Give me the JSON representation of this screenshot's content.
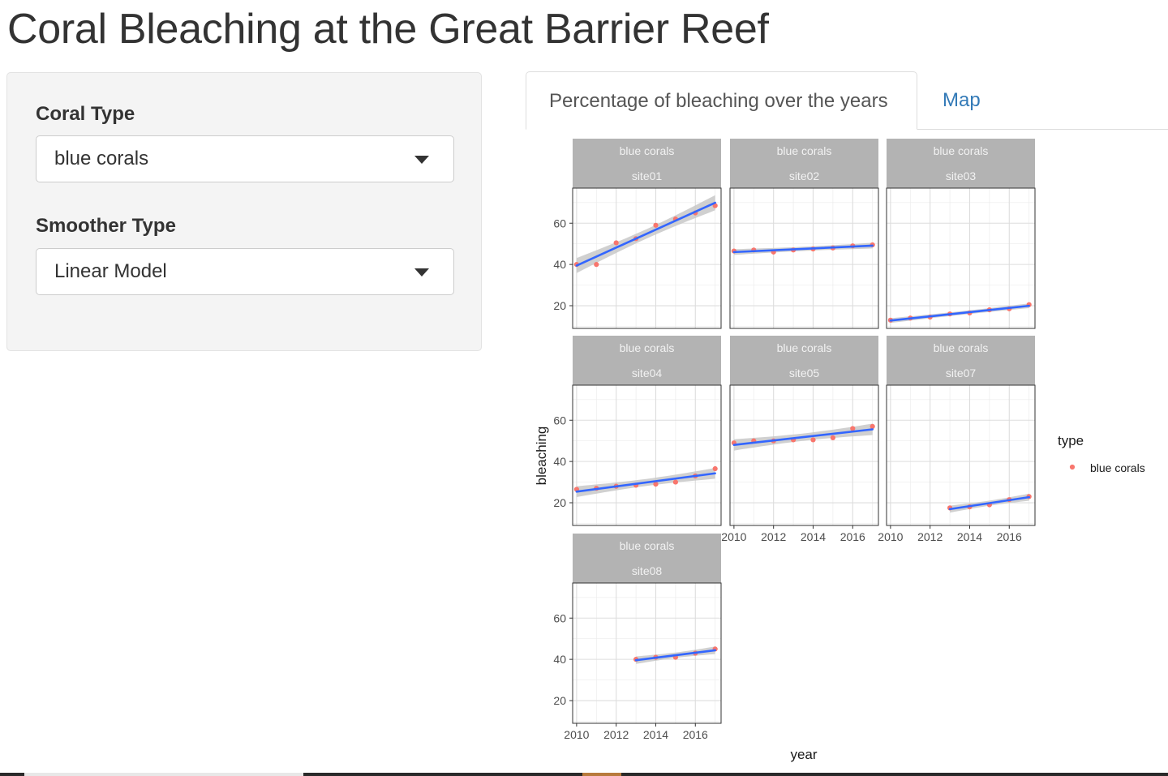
{
  "app": {
    "title": "Coral Bleaching at the Great Barrier Reef"
  },
  "sidebar": {
    "coral_type": {
      "label": "Coral Type",
      "value": "blue corals"
    },
    "smoother_type": {
      "label": "Smoother Type",
      "value": "Linear Model"
    }
  },
  "tabs": [
    {
      "label": "Percentage of bleaching over the years",
      "active": true
    },
    {
      "label": "Map",
      "active": false
    }
  ],
  "colors": {
    "point": "#f8766d",
    "line": "#3366ff",
    "band": "#c8c8c8",
    "strip": "#b3b3b3",
    "strip_text": "#f2f2f2",
    "grid": "#dddddd",
    "link": "#337ab7"
  },
  "chart_data": {
    "type": "scatter",
    "xlabel": "year",
    "ylabel": "bleaching",
    "x_ticks": [
      2010,
      2012,
      2014,
      2016
    ],
    "y_ticks": [
      20,
      40,
      60
    ],
    "xlim": [
      2009.8,
      2017.3
    ],
    "ylim": [
      9,
      77
    ],
    "grid": true,
    "smoother": "Linear Model",
    "legend": {
      "title": "type",
      "entries": [
        "blue corals"
      ],
      "position": "right"
    },
    "panels": [
      {
        "label": "blue corals",
        "site": "site01",
        "x": [
          2010,
          2011,
          2012,
          2013,
          2014,
          2015,
          2016,
          2017
        ],
        "y": [
          40,
          40,
          50.5,
          52.5,
          59,
          62,
          65,
          68.5
        ]
      },
      {
        "label": "blue corals",
        "site": "site02",
        "x": [
          2010,
          2011,
          2012,
          2013,
          2014,
          2015,
          2016,
          2017
        ],
        "y": [
          46.5,
          47,
          46,
          47,
          47.5,
          48,
          49,
          49.5
        ]
      },
      {
        "label": "blue corals",
        "site": "site03",
        "x": [
          2010,
          2011,
          2012,
          2013,
          2014,
          2015,
          2016,
          2017
        ],
        "y": [
          13,
          14,
          14.5,
          16,
          16.5,
          18,
          18.5,
          20.5
        ]
      },
      {
        "label": "blue corals",
        "site": "site04",
        "x": [
          2010,
          2011,
          2012,
          2013,
          2014,
          2015,
          2016,
          2017
        ],
        "y": [
          26.5,
          27,
          28,
          28.5,
          29,
          30,
          33,
          36.5
        ]
      },
      {
        "label": "blue corals",
        "site": "site05",
        "x": [
          2010,
          2011,
          2012,
          2013,
          2014,
          2015,
          2016,
          2017
        ],
        "y": [
          49,
          50,
          50,
          50.5,
          50.5,
          51.5,
          56,
          57
        ]
      },
      {
        "label": "blue corals",
        "site": "site07",
        "x": [
          2013,
          2014,
          2015,
          2016,
          2017
        ],
        "y": [
          17.5,
          18,
          19,
          21.5,
          23
        ]
      },
      {
        "label": "blue corals",
        "site": "site08",
        "x": [
          2013,
          2014,
          2015,
          2016,
          2017
        ],
        "y": [
          40,
          41,
          41,
          43,
          45
        ]
      }
    ]
  }
}
